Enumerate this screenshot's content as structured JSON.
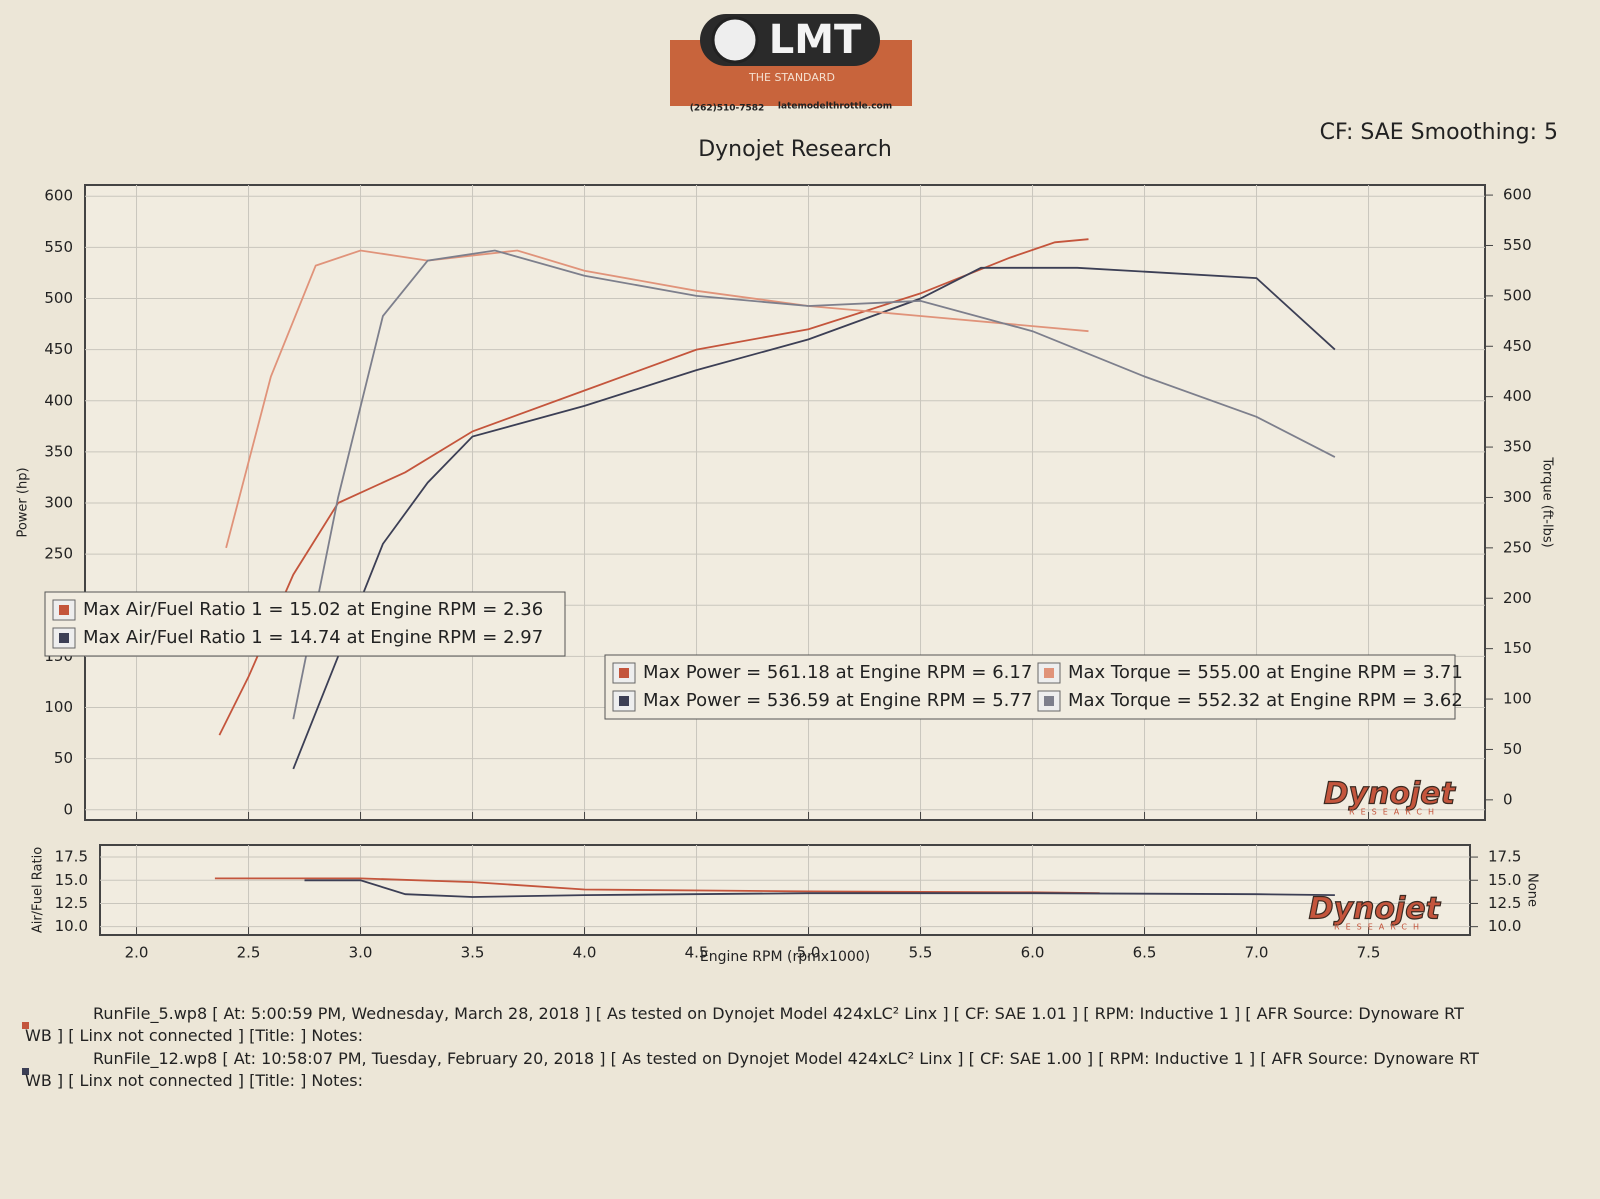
{
  "header": {
    "logo": "LMT",
    "tagline": "THE STANDARD",
    "phone": "(262)510-7582",
    "website": "latemodelthrottle.com",
    "title": "Dynojet Research",
    "settings": "CF: SAE Smoothing: 5",
    "watermark": "Dynojet",
    "watermark_sub": "RESEARCH"
  },
  "chart_data": [
    {
      "type": "line",
      "y_label": "Power (hp)",
      "y2_label": "Torque (ft-lbs)",
      "xlim": [
        1.77,
        8.02
      ],
      "xticks": [
        2,
        2.5,
        3,
        3.5,
        4,
        4.5,
        5,
        5.5,
        6,
        6.5,
        7,
        7.5
      ],
      "ylim": [
        -10,
        611
      ],
      "yticks": [
        0,
        50,
        100,
        150,
        200,
        250,
        300,
        350,
        400,
        450,
        500,
        550,
        600
      ],
      "y2lim": [
        -20,
        610
      ],
      "y2ticks": [
        0,
        50,
        100,
        150,
        200,
        250,
        300,
        350,
        400,
        450,
        500,
        550,
        600
      ],
      "grid": true,
      "series": [
        {
          "name": "Max Power = 561.18 at Engine RPM = 6.17",
          "color": "#c4553c",
          "x": [
            2.37,
            2.5,
            2.7,
            2.9,
            3.2,
            3.5,
            4.0,
            4.5,
            5.0,
            5.5,
            5.9,
            6.1,
            6.25
          ],
          "values": [
            73,
            130,
            230,
            300,
            330,
            370,
            410,
            450,
            470,
            505,
            540,
            555,
            558
          ]
        },
        {
          "name": "Max Power = 536.59 at Engine RPM = 5.77",
          "color": "#3c3f55",
          "x": [
            2.7,
            2.9,
            3.1,
            3.3,
            3.5,
            4.0,
            4.5,
            5.0,
            5.5,
            5.77,
            6.2,
            7.0,
            7.35
          ],
          "values": [
            40,
            150,
            260,
            320,
            365,
            395,
            430,
            460,
            500,
            530,
            530,
            520,
            450
          ]
        },
        {
          "name": "Max Torque = 555.00 at Engine RPM = 3.71",
          "color": "#e0937a",
          "axis": "y2",
          "x": [
            2.4,
            2.6,
            2.8,
            3.0,
            3.3,
            3.7,
            4.0,
            4.5,
            5.0,
            5.5,
            6.0,
            6.25
          ],
          "values": [
            250,
            420,
            530,
            545,
            535,
            545,
            525,
            505,
            490,
            480,
            470,
            465
          ]
        },
        {
          "name": "Max Torque = 552.32 at Engine RPM = 3.62",
          "color": "#7d7f8c",
          "axis": "y2",
          "x": [
            2.7,
            2.9,
            3.1,
            3.3,
            3.6,
            4.0,
            4.5,
            5.0,
            5.5,
            6.0,
            6.5,
            7.0,
            7.35
          ],
          "values": [
            80,
            300,
            480,
            535,
            545,
            520,
            500,
            490,
            495,
            465,
            420,
            380,
            340
          ]
        }
      ]
    },
    {
      "type": "line",
      "x_label": "Engine RPM (rpmx1000)",
      "y_label": "Air/Fuel Ratio",
      "y2_label": "None",
      "xlim": [
        1.77,
        8.02
      ],
      "xticks": [
        {
          "value": 2,
          "label": "2.0"
        },
        2.5,
        {
          "value": 3,
          "label": "3.0"
        },
        3.5,
        {
          "value": 4,
          "label": "4.0"
        },
        4.5,
        {
          "value": 5,
          "label": "5.0"
        },
        5.5,
        {
          "value": 6,
          "label": "6.0"
        },
        6.5,
        {
          "value": 7,
          "label": "7.0"
        },
        7.5
      ],
      "ylim": [
        9.1,
        18.8
      ],
      "yticks": [
        {
          "value": 10,
          "label": "10.0"
        },
        12.5,
        {
          "value": 15,
          "label": "15.0"
        },
        17.5
      ],
      "y2lim": [
        9.1,
        18.8
      ],
      "y2ticks": [
        {
          "value": 10,
          "label": "10.0"
        },
        12.5,
        {
          "value": 15,
          "label": "15.0"
        },
        17.5
      ],
      "grid": true,
      "series": [
        {
          "name": "Max Air/Fuel Ratio 1 = 15.02 at Engine RPM = 2.36",
          "color": "#c4553c",
          "x": [
            2.35,
            2.7,
            3.0,
            3.5,
            4.0,
            5.0,
            6.0,
            6.3
          ],
          "values": [
            15.2,
            15.2,
            15.2,
            14.8,
            14.0,
            13.8,
            13.7,
            13.6
          ]
        },
        {
          "name": "Max Air/Fuel Ratio 1 = 14.74 at Engine RPM = 2.97",
          "color": "#3c3f55",
          "x": [
            2.75,
            3.0,
            3.2,
            3.5,
            4.0,
            5.0,
            6.0,
            7.0,
            7.35
          ],
          "values": [
            15.0,
            15.0,
            13.5,
            13.2,
            13.4,
            13.6,
            13.6,
            13.5,
            13.4
          ]
        }
      ]
    }
  ],
  "footer": {
    "runs": [
      {
        "color": "#c4553c",
        "text": "RunFile_5.wp8 [ At: 5:00:59 PM, Wednesday, March 28, 2018 ] [ As tested on Dynojet Model 424xLC² Linx ] [ CF: SAE 1.01 ] [ RPM: Inductive 1 ] [ AFR Source: Dynoware RT WB ] [ Linx not connected ] [Title: ] Notes:"
      },
      {
        "color": "#3c3f55",
        "text": "RunFile_12.wp8 [ At: 10:58:07 PM, Tuesday, February 20, 2018 ] [ As tested on Dynojet Model 424xLC² Linx ] [ CF: SAE 1.00 ] [ RPM: Inductive 1 ] [ AFR Source: Dynoware RT WB ] [ Linx not connected ] [Title: ] Notes:"
      }
    ]
  }
}
